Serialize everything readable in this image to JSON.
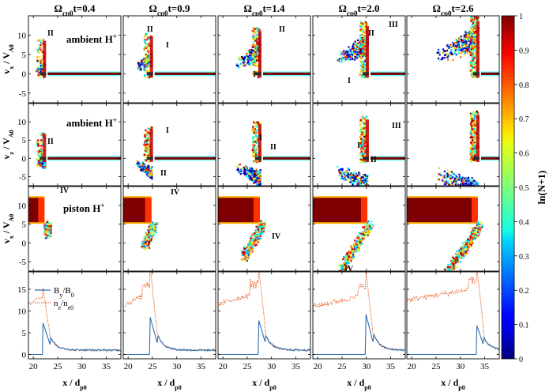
{
  "figure": {
    "column_titles": [
      {
        "prefix": "Ω",
        "sub": "cp0",
        "suffix": "t=0.4"
      },
      {
        "prefix": "Ω",
        "sub": "cp0",
        "suffix": "t=0.9"
      },
      {
        "prefix": "Ω",
        "sub": "cp0",
        "suffix": "t=1.4"
      },
      {
        "prefix": "Ω",
        "sub": "cp0",
        "suffix": "t=2.0"
      },
      {
        "prefix": "Ω",
        "sub": "cp0",
        "suffix": "t=2.6"
      }
    ],
    "row_labels": [
      {
        "text": "ambient H",
        "sup": "+"
      },
      {
        "text": "ambient H",
        "sup": "+"
      },
      {
        "text": "piston H",
        "sup": "+"
      }
    ],
    "row_ylabels": [
      {
        "v": "v",
        "sub1": "x",
        "sep": " / V",
        "sub2": "A0"
      },
      {
        "v": "v",
        "sub1": "z",
        "sep": " / V",
        "sub2": "A0"
      },
      {
        "v": "v",
        "sub1": "x",
        "sep": " / V",
        "sub2": "A0"
      }
    ],
    "xlabel": {
      "main": "x / d",
      "sub": "p0"
    },
    "colorbar": {
      "label": "ln(N+1)",
      "ticks": [
        "0",
        "0.1",
        "0.2",
        "0.3",
        "0.4",
        "0.5",
        "0.6",
        "0.7",
        "0.8",
        "0.9",
        "1"
      ],
      "colormap": "jet"
    },
    "x_ticks": [
      "20",
      "25",
      "30",
      "35"
    ],
    "y_ticks_phase": [
      "-5",
      "0",
      "5",
      "10"
    ],
    "y_ticks_profile": [
      "0",
      "5",
      "10",
      "15"
    ],
    "legend": [
      {
        "main": "B",
        "sub1": "y",
        "sep": "/B",
        "sub2": "0",
        "color": "#2E6FB0",
        "style": "solid"
      },
      {
        "main": "n",
        "sub1": "e",
        "sep": "/n",
        "sub2": "e0",
        "color": "#E8632B",
        "style": "dotted"
      }
    ],
    "annotations": {
      "r0": [
        [
          "II"
        ],
        [
          "II",
          "I"
        ],
        [
          "I",
          "II"
        ],
        [
          "I",
          "II",
          "III"
        ],
        []
      ],
      "r1": [
        [
          "II"
        ],
        [
          "I",
          "II"
        ],
        [
          "I",
          "II"
        ],
        [
          "I",
          "II",
          "III"
        ],
        []
      ],
      "r2": [
        [
          "IV"
        ],
        [
          "IV"
        ],
        [
          "IV"
        ],
        [
          "IV"
        ],
        []
      ]
    }
  },
  "chart_data": {
    "type": "heatmap",
    "xlim": [
      19,
      38
    ],
    "phase_ylim": [
      -7.5,
      15
    ],
    "profile_ylim": [
      -1,
      19
    ],
    "shock_x": [
      22.3,
      24.8,
      27.6,
      30.2,
      33.6
    ],
    "profiles": [
      {
        "upstream_n": 12.0,
        "peak_n": 13.2,
        "peak_B": 6.2,
        "downstream": 1.0
      },
      {
        "upstream_n": 11.3,
        "peak_n": 17.5,
        "peak_B": 7.5,
        "downstream": 1.0
      },
      {
        "upstream_n": 11.5,
        "peak_n": 17.5,
        "peak_B": 7.0,
        "downstream": 1.0
      },
      {
        "upstream_n": 11.0,
        "peak_n": 16.5,
        "peak_B": 8.0,
        "downstream": 1.0
      },
      {
        "upstream_n": 12.5,
        "peak_n": 18.0,
        "peak_B": 6.0,
        "downstream": 1.0
      }
    ]
  }
}
